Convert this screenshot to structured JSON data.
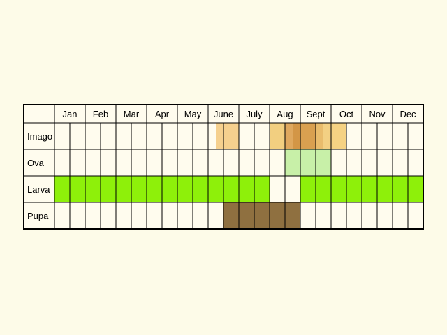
{
  "chart_data": {
    "type": "table",
    "months": [
      "Jan",
      "Feb",
      "Mar",
      "Apr",
      "May",
      "June",
      "July",
      "Aug",
      "Sept",
      "Oct",
      "Nov",
      "Dec"
    ],
    "stages": [
      {
        "key": "imago",
        "label": "Imago"
      },
      {
        "key": "ova",
        "label": "Ova"
      },
      {
        "key": "larva",
        "label": "Larva"
      },
      {
        "key": "pupa",
        "label": "Pupa"
      }
    ],
    "halves_per_month": 2,
    "fills": [
      {
        "stage": "imago",
        "from": 10.5,
        "to": 12,
        "color": "#f5d08e"
      },
      {
        "stage": "imago",
        "from": 14,
        "to": 15,
        "color": "#f2cf80"
      },
      {
        "stage": "imago",
        "from": 15,
        "to": 15.5,
        "color": "#dfa85e"
      },
      {
        "stage": "imago",
        "from": 15.5,
        "to": 16,
        "color": "#d39646"
      },
      {
        "stage": "imago",
        "from": 16,
        "to": 17,
        "color": "#d9a050"
      },
      {
        "stage": "imago",
        "from": 17,
        "to": 17.5,
        "color": "#e9bc6c"
      },
      {
        "stage": "imago",
        "from": 17.5,
        "to": 18,
        "color": "#f3d083"
      },
      {
        "stage": "imago",
        "from": 18,
        "to": 19,
        "color": "#f5d283"
      },
      {
        "stage": "ova",
        "from": 15,
        "to": 18,
        "color": "#c8f0a8"
      },
      {
        "stage": "larva",
        "from": 0,
        "to": 14,
        "color": "#8ef00a"
      },
      {
        "stage": "larva",
        "from": 16,
        "to": 24,
        "color": "#8ef00a"
      },
      {
        "stage": "pupa",
        "from": 11,
        "to": 16,
        "color": "#8f7040"
      }
    ],
    "border_color": "#000000",
    "background_color": "#fffcee"
  }
}
